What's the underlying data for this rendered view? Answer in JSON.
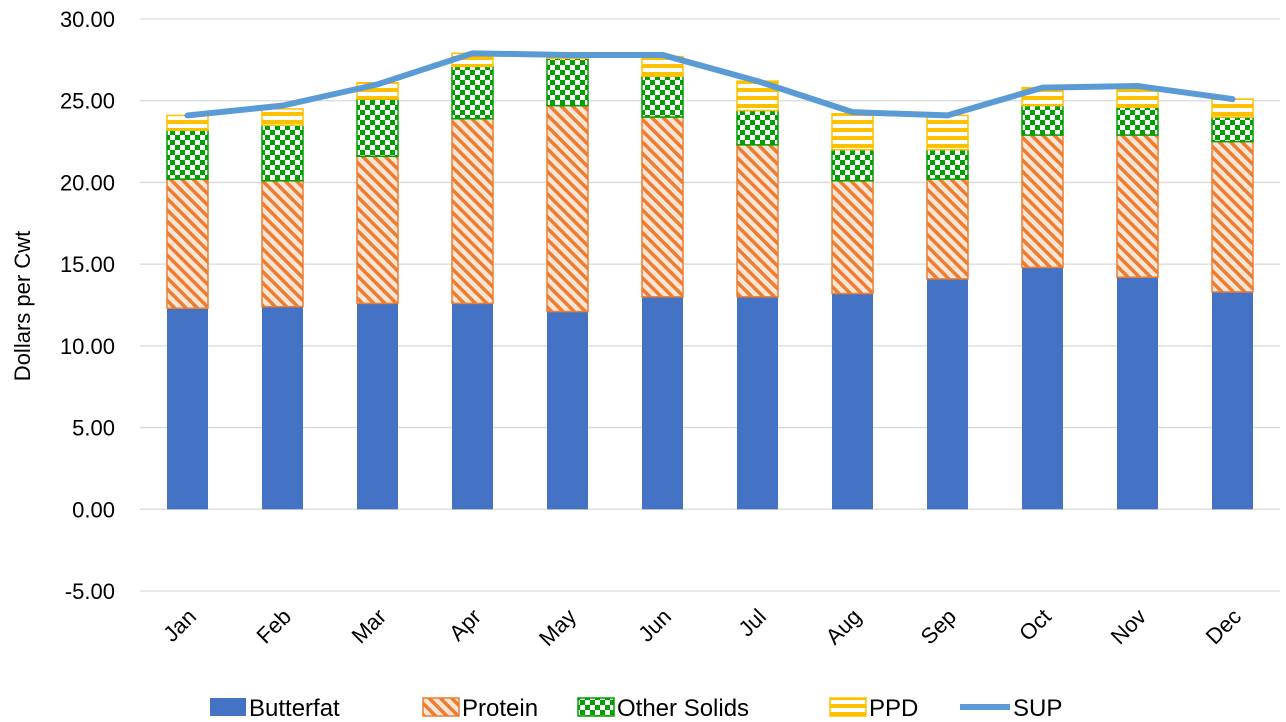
{
  "chart_data": {
    "type": "bar",
    "stacked": true,
    "categories": [
      "Jan",
      "Feb",
      "Mar",
      "Apr",
      "May",
      "Jun",
      "Jul",
      "Aug",
      "Sep",
      "Oct",
      "Nov",
      "Dec"
    ],
    "ylabel": "Dollars per Cwt",
    "xlabel": "",
    "title": "",
    "ylim": [
      -5,
      30
    ],
    "yticks": [
      "30.00",
      "25.00",
      "20.00",
      "15.00",
      "10.00",
      "5.00",
      "0.00",
      "-5.00"
    ],
    "grid": true,
    "legend_position": "bottom",
    "series": [
      {
        "name": "Butterfat",
        "kind": "bar",
        "color": "#4472C4",
        "pattern": "solid",
        "values": [
          12.3,
          12.4,
          12.6,
          12.6,
          12.1,
          13.0,
          13.0,
          13.2,
          14.1,
          14.8,
          14.2,
          13.3
        ]
      },
      {
        "name": "Protein",
        "kind": "bar",
        "color": "#ED7D31",
        "pattern": "diagonal-hatch",
        "values": [
          7.9,
          7.7,
          9.0,
          11.3,
          12.6,
          11.0,
          9.3,
          6.9,
          6.1,
          8.1,
          8.7,
          9.2
        ]
      },
      {
        "name": "Other Solids",
        "kind": "bar",
        "color": "#00A000",
        "pattern": "checker",
        "values": [
          3.0,
          3.4,
          3.5,
          3.2,
          2.9,
          2.5,
          2.1,
          1.9,
          1.8,
          1.8,
          1.7,
          1.5
        ]
      },
      {
        "name": "PPD",
        "kind": "bar",
        "color": "#FFC000",
        "pattern": "horizontal-lines",
        "values": [
          0.9,
          1.0,
          1.0,
          0.8,
          0.3,
          1.2,
          1.8,
          2.2,
          2.1,
          1.1,
          1.1,
          1.1
        ]
      },
      {
        "name": "SUP",
        "kind": "line",
        "color": "#5B9BD5",
        "values": [
          24.1,
          24.7,
          26.0,
          27.9,
          27.8,
          27.8,
          26.2,
          24.3,
          24.1,
          25.8,
          25.9,
          25.1
        ]
      }
    ]
  }
}
